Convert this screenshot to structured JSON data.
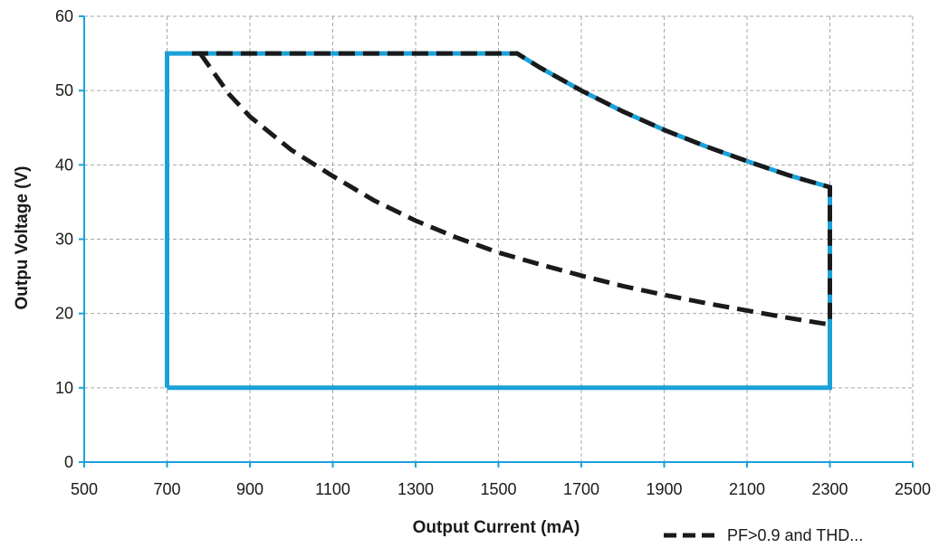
{
  "chart_data": {
    "type": "line",
    "title": "",
    "xlabel": "Output Current (mA)",
    "ylabel": "Outpu Voltage (V)",
    "xlim": [
      500,
      2500
    ],
    "ylim": [
      0,
      60
    ],
    "x_ticks": [
      500,
      700,
      900,
      1100,
      1300,
      1500,
      1700,
      1900,
      2100,
      2300,
      2500
    ],
    "y_ticks": [
      0,
      10,
      20,
      30,
      40,
      50,
      60
    ],
    "grid": true,
    "legend_position": "bottom-right",
    "series": [
      {
        "style": "solid",
        "color": "#1ba1d8",
        "x": [
          700,
          700,
          1545,
          1600,
          1700,
          1800,
          1900,
          2000,
          2100,
          2200,
          2300,
          2300,
          700
        ],
        "y": [
          10,
          55,
          55,
          53.1,
          50.0,
          47.2,
          44.7,
          42.5,
          40.5,
          38.6,
          37.0,
          10,
          10
        ]
      },
      {
        "name": "PF>0.9 and THD...",
        "style": "dashed",
        "color": "#1a1a1a",
        "x": [
          760,
          1545,
          1600,
          1700,
          1800,
          1900,
          2000,
          2100,
          2200,
          2300,
          2300
        ],
        "y": [
          55,
          55,
          53.1,
          50.0,
          47.2,
          44.7,
          42.5,
          40.5,
          38.6,
          37.0,
          18.5
        ]
      },
      {
        "style": "dashed",
        "color": "#1a1a1a",
        "x": [
          780,
          850,
          900,
          1000,
          1100,
          1200,
          1300,
          1400,
          1500,
          1600,
          1700,
          1800,
          1900,
          2000,
          2100,
          2200,
          2300
        ],
        "y": [
          55,
          49.5,
          46.5,
          42.0,
          38.5,
          35.2,
          32.5,
          30.2,
          28.2,
          26.6,
          25.1,
          23.7,
          22.5,
          21.4,
          20.4,
          19.4,
          18.5
        ]
      }
    ]
  }
}
